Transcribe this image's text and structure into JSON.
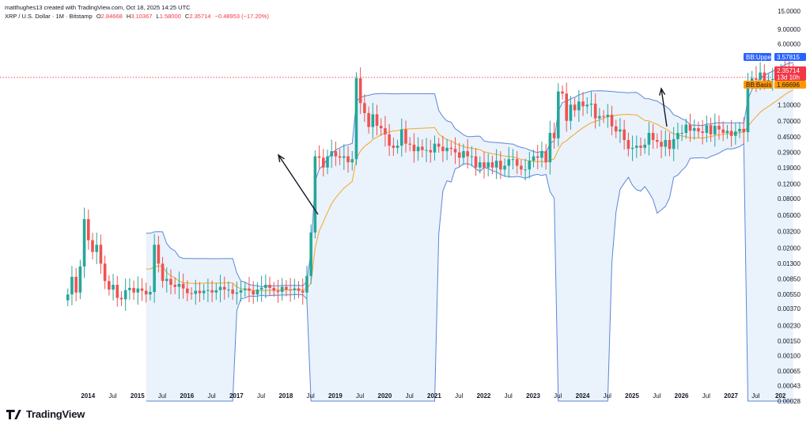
{
  "header": {
    "author_line": "matthughes13 created with TradingView.com, Oct 18, 2025 14:25 UTC",
    "symbol_line": "XRP / U.S. Dollar · 1M · Bitstamp",
    "open_label": "O",
    "open": "2.84668",
    "high_label": "H",
    "high": "3.10367",
    "low_label": "L",
    "low": "1.58000",
    "close_label": "C",
    "close": "2.35714",
    "change": "−0.48953 (−17.20%)"
  },
  "price_tags": {
    "bb_upper_name": "BB:Upper",
    "bb_upper_value": "3.57815",
    "current_price": "2.35714",
    "countdown": "13d 10h",
    "bb_basis_name": "BB:Basis",
    "bb_basis_value": "1.66696"
  },
  "colors": {
    "up": "#26a69a",
    "down": "#ef5350",
    "band": "#5b87d8",
    "band_fill": "#eaf2fc",
    "basis": "#f5a623",
    "upper_tag": "#2962ff",
    "price_tag": "#f23645",
    "basis_tag": "#ff9800"
  },
  "footer": {
    "brand": "TradingView",
    "logo_icon": "tradingview-logo-icon"
  },
  "chart_data": {
    "type": "candlestick",
    "y_scale": "log",
    "y_ticks": [
      "15.0000",
      "9.00000",
      "6.00000",
      "4.00000",
      "3.00000",
      "2.00000",
      "1.10000",
      "0.70000",
      "0.45000",
      "0.29000",
      "0.19000",
      "0.12000",
      "0.08000",
      "0.05000",
      "0.03200",
      "0.02000",
      "0.01300",
      "0.00850",
      "0.00550",
      "0.00370",
      "0.00230",
      "0.00150",
      "0.00100",
      "0.00065",
      "0.00043",
      "0.00028"
    ],
    "x_ticks": [
      "2014",
      "Jul",
      "2015",
      "Jul",
      "2016",
      "Jul",
      "2017",
      "Jul",
      "2018",
      "Jul",
      "2019",
      "Jul",
      "2020",
      "Jul",
      "2021",
      "Jul",
      "2022",
      "Jul",
      "2023",
      "Jul",
      "2024",
      "Jul",
      "2025",
      "Jul",
      "2026",
      "Jul",
      "2027",
      "Jul",
      "202"
    ],
    "x_range_years": [
      2013.5,
      2027.75
    ],
    "closes": [
      0.0055,
      0.009,
      0.0058,
      0.012,
      0.045,
      0.025,
      0.018,
      0.022,
      0.013,
      0.008,
      0.0063,
      0.0072,
      0.005,
      0.0048,
      0.0062,
      0.0066,
      0.0058,
      0.0065,
      0.0061,
      0.0055,
      0.0059,
      0.022,
      0.013,
      0.008,
      0.0085,
      0.0072,
      0.0068,
      0.0074,
      0.0065,
      0.0057,
      0.0056,
      0.0061,
      0.0057,
      0.0061,
      0.0062,
      0.0058,
      0.0062,
      0.0068,
      0.0063,
      0.0063,
      0.0056,
      0.0058,
      0.0062,
      0.0065,
      0.0061,
      0.0055,
      0.0063,
      0.0066,
      0.0072,
      0.0066,
      0.0061,
      0.0059,
      0.0068,
      0.0063,
      0.0062,
      0.0065,
      0.0061,
      0.0058,
      0.0092,
      0.031,
      0.26,
      0.25,
      0.19,
      0.26,
      0.3,
      0.26,
      0.25,
      0.26,
      0.22,
      0.24,
      2.3,
      1.15,
      0.87,
      0.59,
      0.84,
      0.61,
      0.57,
      0.48,
      0.35,
      0.33,
      0.35,
      0.55,
      0.37,
      0.36,
      0.3,
      0.34,
      0.31,
      0.31,
      0.29,
      0.37,
      0.34,
      0.3,
      0.33,
      0.32,
      0.29,
      0.25,
      0.3,
      0.26,
      0.26,
      0.19,
      0.22,
      0.19,
      0.22,
      0.19,
      0.23,
      0.18,
      0.2,
      0.24,
      0.24,
      0.2,
      0.18,
      0.18,
      0.23,
      0.26,
      0.25,
      0.3,
      0.22,
      0.5,
      0.43,
      1.59,
      1.5,
      0.7,
      1.1,
      0.94,
      1.2,
      1.05,
      1.1,
      1.13,
      0.75,
      0.8,
      0.78,
      0.83,
      0.6,
      0.52,
      0.55,
      0.41,
      0.32,
      0.33,
      0.35,
      0.33,
      0.36,
      0.5,
      0.41,
      0.39,
      0.34,
      0.41,
      0.32,
      0.42,
      0.5,
      0.5,
      0.63,
      0.53,
      0.57,
      0.52,
      0.5,
      0.62,
      0.48,
      0.61,
      0.55,
      0.5,
      0.53,
      0.46,
      0.52,
      0.56,
      0.51,
      2.05,
      2.3,
      2.2,
      2.7,
      2.1,
      2.2,
      2.25,
      2.35,
      2.85,
      2.84,
      2.8,
      2.35714
    ],
    "bb_upper_label": "BB:Upper",
    "bb_basis_label": "BB:Basis"
  }
}
